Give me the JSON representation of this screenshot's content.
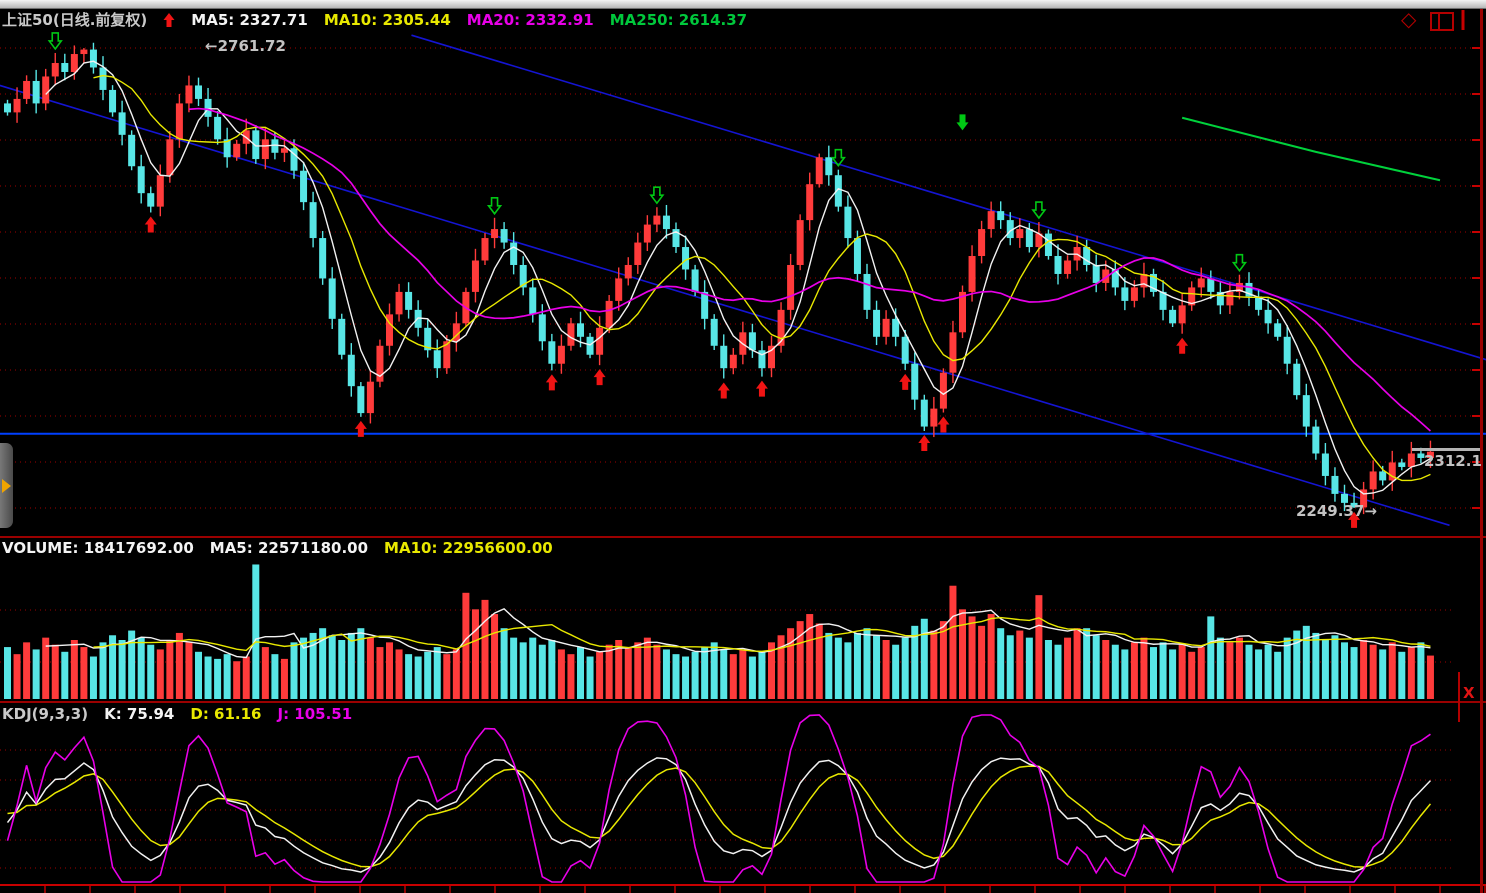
{
  "header": {
    "title": "上证50(日线.前复权)",
    "ma5": "MA5: 2327.71",
    "ma10": "MA10: 2305.44",
    "ma20": "MA20: 2332.91",
    "ma250": "MA250: 2614.37"
  },
  "volume_header": {
    "volume": "VOLUME: 18417692.00",
    "ma5": "MA5: 22571180.00",
    "ma10": "MA10: 22956600.00"
  },
  "kdj_header": {
    "name": "KDJ(9,3,3)",
    "k": "K: 75.94",
    "d": "D: 61.16",
    "j": "J: 105.51"
  },
  "labels": {
    "peak": "←2761.72",
    "trough": "2249.37→",
    "last_price": "2312.1",
    "close_button": "X"
  },
  "chart_data": {
    "type": "candlestick",
    "title": "上证50(日线.前复权)",
    "panes": [
      "price with MA5/MA10/MA20/MA250 overlays",
      "volume with MA5/MA10",
      "KDJ(9,3,3)"
    ],
    "price_range_estimate": [
      2218,
      2784
    ],
    "grid": "dotted red horizontal lines, ~51 pts apart",
    "open_first": 2700,
    "closes": [
      2690,
      2705,
      2725,
      2700,
      2730,
      2745,
      2735,
      2755,
      2760,
      2740,
      2715,
      2690,
      2665,
      2630,
      2600,
      2585,
      2620,
      2660,
      2700,
      2720,
      2705,
      2685,
      2660,
      2640,
      2655,
      2670,
      2638,
      2660,
      2645,
      2650,
      2625,
      2590,
      2550,
      2505,
      2460,
      2420,
      2385,
      2355,
      2390,
      2430,
      2465,
      2490,
      2470,
      2450,
      2425,
      2405,
      2435,
      2455,
      2490,
      2525,
      2550,
      2560,
      2545,
      2520,
      2495,
      2465,
      2435,
      2410,
      2430,
      2455,
      2440,
      2420,
      2450,
      2480,
      2505,
      2520,
      2545,
      2565,
      2575,
      2560,
      2540,
      2515,
      2490,
      2460,
      2430,
      2405,
      2420,
      2445,
      2425,
      2405,
      2430,
      2470,
      2520,
      2570,
      2610,
      2640,
      2620,
      2585,
      2550,
      2510,
      2470,
      2440,
      2460,
      2440,
      2410,
      2370,
      2340,
      2360,
      2400,
      2445,
      2490,
      2530,
      2560,
      2580,
      2570,
      2550,
      2560,
      2540,
      2555,
      2530,
      2510,
      2525,
      2540,
      2520,
      2500,
      2515,
      2495,
      2480,
      2495,
      2510,
      2490,
      2470,
      2455,
      2475,
      2495,
      2505,
      2490,
      2475,
      2490,
      2500,
      2485,
      2470,
      2455,
      2440,
      2410,
      2375,
      2340,
      2310,
      2285,
      2265,
      2255,
      2250,
      2270,
      2290,
      2280,
      2300,
      2295,
      2310,
      2305,
      2312
    ],
    "volumes_millions": [
      22,
      19,
      24,
      21,
      26,
      23,
      20,
      25,
      22,
      18,
      24,
      27,
      25,
      29,
      26,
      23,
      21,
      25,
      28,
      24,
      20,
      18,
      17,
      19,
      16,
      18,
      57,
      22,
      19,
      17,
      24,
      26,
      28,
      30,
      27,
      25,
      28,
      30,
      26,
      22,
      24,
      21,
      19,
      18,
      20,
      22,
      19,
      21,
      45,
      38,
      42,
      36,
      30,
      26,
      24,
      26,
      23,
      25,
      21,
      19,
      22,
      18,
      20,
      23,
      25,
      22,
      24,
      26,
      23,
      21,
      19,
      18,
      20,
      22,
      24,
      21,
      19,
      21,
      18,
      20,
      24,
      27,
      30,
      33,
      36,
      32,
      28,
      26,
      24,
      28,
      30,
      27,
      25,
      23,
      26,
      31,
      34,
      29,
      33,
      48,
      38,
      35,
      31,
      36,
      30,
      27,
      29,
      26,
      44,
      25,
      23,
      26,
      30,
      30,
      27,
      25,
      23,
      21,
      24,
      26,
      22,
      24,
      21,
      23,
      20,
      22,
      35,
      26,
      24,
      26,
      23,
      21,
      23,
      20,
      26,
      29,
      31,
      28,
      25,
      27,
      24,
      22,
      25,
      23,
      21,
      24,
      20,
      22,
      24,
      18.4
    ],
    "peak": {
      "bar": 8,
      "price": 2761.72
    },
    "trough": {
      "bar": 141,
      "price": 2249.37
    },
    "last_price": 2312.1,
    "support_level": 2332,
    "ma_values_current": {
      "MA5": 2327.71,
      "MA10": 2305.44,
      "MA20": 2332.91,
      "MA250": 2614.37
    },
    "volume_current": 18417692.0,
    "volume_ma5": 22571180.0,
    "volume_ma10": 22956600.0,
    "kdj_params": [
      9,
      3,
      3
    ],
    "kdj_current": {
      "K": 75.94,
      "D": 61.16,
      "J": 105.51
    },
    "signals": {
      "buy_bars": [
        15,
        37,
        57,
        62,
        75,
        79,
        94,
        96,
        98,
        123,
        141
      ],
      "sell_bars": [
        5,
        51,
        68,
        87,
        108,
        129
      ],
      "floating_sell": {
        "bar": 100,
        "price": 2670
      }
    },
    "trendlines": [
      {
        "color": "#1414d2",
        "from": {
          "bar": -0.8,
          "price": 2720
        },
        "to": {
          "bar": 151,
          "price": 2230
        }
      },
      {
        "color": "#1414d2",
        "from": {
          "bar": 42.3,
          "price": 2776
        },
        "to": {
          "bar": 155,
          "price": 2414
        }
      }
    ],
    "ma250_visible_segment": [
      {
        "bar": 123,
        "price": 2684
      },
      {
        "bar": 137,
        "price": 2646
      },
      {
        "bar": 150,
        "price": 2614.37
      }
    ],
    "colors": {
      "up": "#ff3b3b",
      "down": "#58e6e6",
      "ma5": "#f2f2f2",
      "ma10": "#e8e800",
      "ma20": "#e800e8",
      "ma250": "#00d23c",
      "grid": "#a00000",
      "trend": "#1414d2",
      "support": "#0040ff",
      "buy_arrow": "#f01414",
      "sell_arrow": "#00c814"
    }
  }
}
